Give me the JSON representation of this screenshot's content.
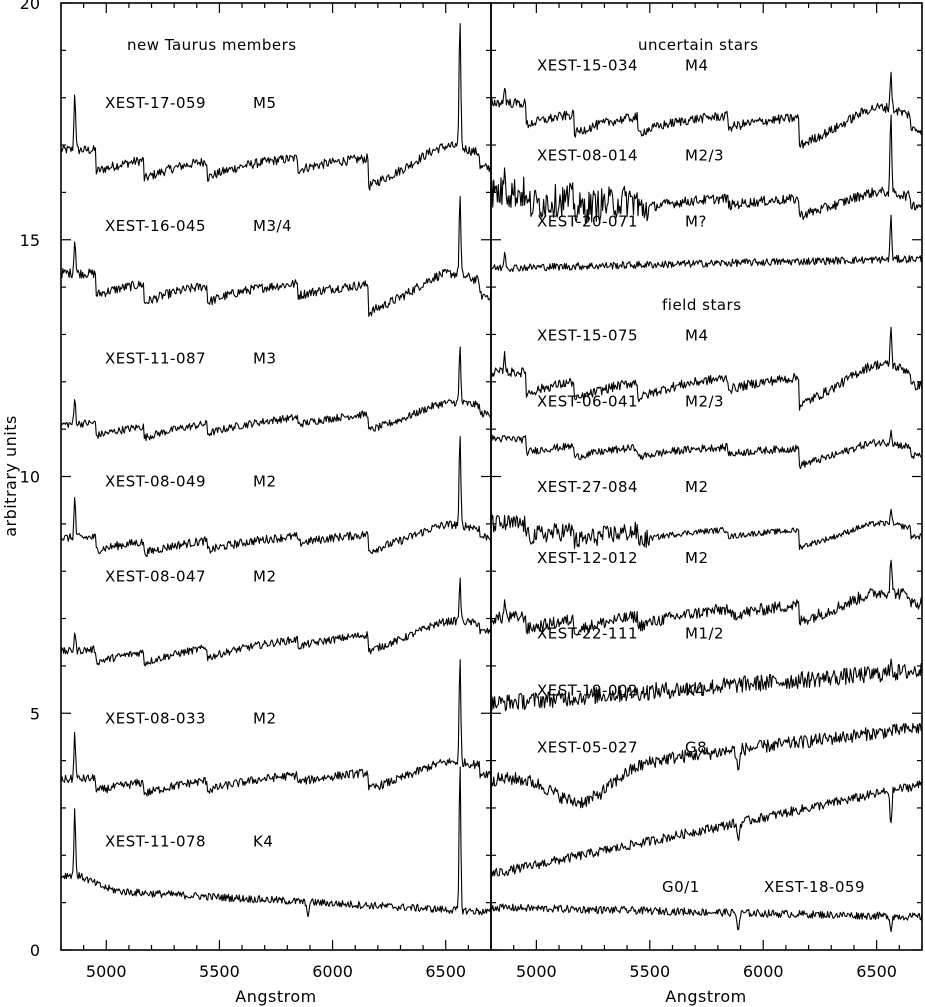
{
  "chart_data": [
    {
      "type": "line",
      "panel": "left",
      "header": "new Taurus members",
      "xlabel": "Angstrom",
      "ylabel": "arbitrary units",
      "xlim": [
        4800,
        6700
      ],
      "ylim": [
        0,
        20
      ],
      "x_ticks": [
        5000,
        5500,
        6000,
        6500
      ],
      "y_ticks": [
        0,
        5,
        10,
        15,
        20
      ],
      "series": [
        {
          "name": "XEST-17-059",
          "sptype": "M5",
          "start": 16.9,
          "end": 16.8,
          "shape": "mlate",
          "halpha": 2.8,
          "noise": 0.1
        },
        {
          "name": "XEST-16-045",
          "sptype": "M3/4",
          "start": 14.3,
          "end": 14.1,
          "shape": "mlate",
          "halpha": 1.7,
          "noise": 0.1
        },
        {
          "name": "XEST-11-087",
          "sptype": "M3",
          "start": 11.1,
          "end": 11.5,
          "shape": "mmid",
          "halpha": 1.2,
          "noise": 0.08
        },
        {
          "name": "XEST-08-049",
          "sptype": "M2",
          "start": 8.7,
          "end": 8.9,
          "shape": "mmid",
          "halpha": 1.9,
          "noise": 0.09
        },
        {
          "name": "XEST-08-047",
          "sptype": "M2",
          "start": 6.3,
          "end": 6.9,
          "shape": "mmid",
          "halpha": 0.9,
          "noise": 0.08
        },
        {
          "name": "XEST-08-033",
          "sptype": "M2",
          "start": 3.6,
          "end": 3.9,
          "shape": "mmid",
          "halpha": 2.2,
          "noise": 0.09
        },
        {
          "name": "XEST-11-078",
          "sptype": "K4",
          "start": 1.3,
          "end": 0.8,
          "shape": "k",
          "halpha": 3.1,
          "noise": 0.08
        }
      ]
    },
    {
      "type": "line",
      "panel": "right",
      "header": "uncertain stars",
      "subheader": "field stars",
      "xlabel": "Angstrom",
      "xlim": [
        4800,
        6700
      ],
      "ylim": [
        0,
        20
      ],
      "x_ticks": [
        5000,
        5500,
        6000,
        6500
      ],
      "series": [
        {
          "name": "XEST-15-034",
          "sptype": "M4",
          "start": 17.9,
          "end": 17.6,
          "shape": "mlate",
          "halpha": 0.8,
          "noise": 0.1
        },
        {
          "name": "XEST-08-014",
          "sptype": "M2/3",
          "start": 16.0,
          "end": 15.9,
          "shape": "mnoisy",
          "halpha": 1.6,
          "noise": 0.35
        },
        {
          "name": "XEST-20-071",
          "sptype": "M?",
          "start": 14.4,
          "end": 14.6,
          "shape": "flat",
          "halpha": 0.9,
          "noise": 0.08
        },
        {
          "name": "XEST-15-075",
          "sptype": "M4",
          "start": 12.2,
          "end": 12.2,
          "shape": "mlate",
          "halpha": 0.8,
          "noise": 0.1
        },
        {
          "name": "XEST-06-041",
          "sptype": "M2/3",
          "start": 10.8,
          "end": 10.6,
          "shape": "mmid",
          "halpha": 0.3,
          "noise": 0.08
        },
        {
          "name": "XEST-27-084",
          "sptype": "M2",
          "start": 9.0,
          "end": 8.9,
          "shape": "mnoisy",
          "halpha": 0.3,
          "noise": 0.2
        },
        {
          "name": "XEST-12-012",
          "sptype": "M2",
          "start": 7.0,
          "end": 7.5,
          "shape": "mmid",
          "halpha": 0.8,
          "noise": 0.13
        },
        {
          "name": "XEST-22-111",
          "sptype": "M1/2",
          "start": 5.2,
          "end": 5.9,
          "shape": "flat",
          "halpha": 0.4,
          "noise": 0.18
        },
        {
          "name": "XEST-19-002",
          "sptype": "K4",
          "start": 3.6,
          "end": 4.7,
          "shape": "kdip",
          "halpha": 0.0,
          "noise": 0.14
        },
        {
          "name": "XEST-05-027",
          "sptype": "G8",
          "start": 1.6,
          "end": 3.5,
          "shape": "rising",
          "halpha": -0.8,
          "noise": 0.1
        },
        {
          "name": "XEST-18-059",
          "sptype": "G0/1",
          "start": 0.9,
          "end": 0.7,
          "shape": "g",
          "halpha": -0.3,
          "noise": 0.08
        }
      ]
    }
  ]
}
